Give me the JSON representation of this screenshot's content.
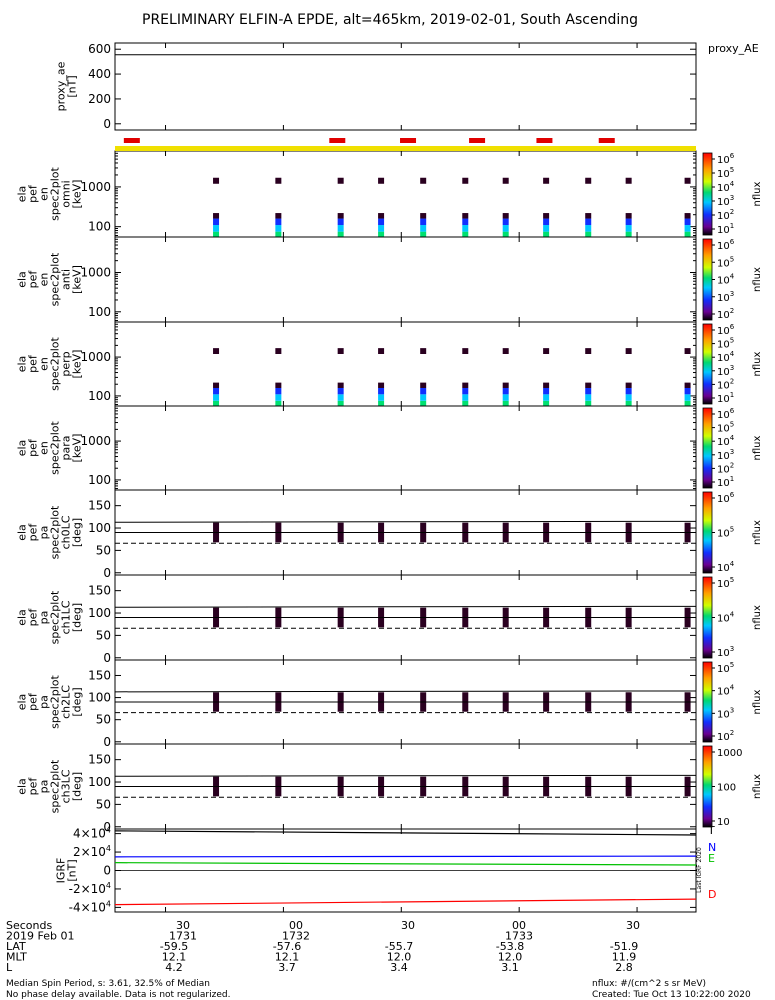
{
  "title": "PRELIMINARY ELFIN-A EPDE, alt=465km, 2019-02-01, South Ascending",
  "colors": {
    "frame": "#000000",
    "yellow_bar": "#f0e000",
    "red_bar": "#e00000",
    "igrf_T": "#000000",
    "igrf_N": "#0000ff",
    "igrf_E": "#00c000",
    "igrf_D": "#ff0000"
  },
  "chart_data": [
    {
      "type": "line",
      "panel": "proxy_ae",
      "ylabel": [
        "proxy_ae",
        "[nT]"
      ],
      "yticks": [
        "600",
        "400",
        "200",
        "0"
      ],
      "ylim": [
        -50,
        650
      ],
      "series": [
        {
          "name": "proxy_AE",
          "x_sec": [
            1713,
            1747.5
          ],
          "y": [
            555,
            555
          ]
        }
      ]
    },
    {
      "type": "heatmap",
      "panel": "en_spec_omni",
      "ylabel": [
        "ela",
        "pef",
        "en",
        "spec2plot",
        "omni",
        "[keV]"
      ],
      "yscale": "log",
      "yticks": [
        "1000",
        "100"
      ],
      "ylim": [
        55,
        8000
      ],
      "colorbar": {
        "label": "nflux",
        "ticks": [
          "10",
          "10",
          "10",
          "10",
          "10",
          "10"
        ],
        "exps": [
          "6",
          "5",
          "4",
          "3",
          "2",
          "1"
        ]
      }
    },
    {
      "type": "heatmap",
      "panel": "en_spec_anti",
      "ylabel": [
        "ela",
        "pef",
        "en",
        "spec2plot",
        "anti",
        "[keV]"
      ],
      "yscale": "log",
      "yticks": [
        "1000",
        "100"
      ],
      "ylim": [
        55,
        8000
      ],
      "colorbar": {
        "label": "nflux",
        "ticks": [
          "10",
          "10",
          "10",
          "10",
          "10"
        ],
        "exps": [
          "6",
          "5",
          "4",
          "3",
          "2"
        ]
      }
    },
    {
      "type": "heatmap",
      "panel": "en_spec_perp",
      "ylabel": [
        "ela",
        "pef",
        "en",
        "spec2plot",
        "perp",
        "[keV]"
      ],
      "yscale": "log",
      "yticks": [
        "1000",
        "100"
      ],
      "ylim": [
        55,
        8000
      ],
      "colorbar": {
        "label": "nflux",
        "ticks": [
          "10",
          "10",
          "10",
          "10",
          "10",
          "10"
        ],
        "exps": [
          "6",
          "5",
          "4",
          "3",
          "2",
          "1"
        ]
      }
    },
    {
      "type": "heatmap",
      "panel": "en_spec_para",
      "ylabel": [
        "ela",
        "pef",
        "en",
        "spec2plot",
        "para",
        "[keV]"
      ],
      "yscale": "log",
      "yticks": [
        "1000",
        "100"
      ],
      "ylim": [
        55,
        8000
      ],
      "colorbar": {
        "label": "nflux",
        "ticks": [
          "10",
          "10",
          "10",
          "10",
          "10",
          "10"
        ],
        "exps": [
          "6",
          "5",
          "4",
          "3",
          "2",
          "1"
        ]
      }
    },
    {
      "type": "heatmap",
      "panel": "pa_spec_ch0",
      "ylabel": [
        "ela",
        "pef",
        "pa",
        "spec2plot",
        "ch0LC",
        "[deg]"
      ],
      "yticks": [
        "150",
        "100",
        "50",
        "0"
      ],
      "ylim": [
        -5,
        185
      ],
      "colorbar": {
        "label": "nflux",
        "ticks": [
          "10",
          "10",
          "10"
        ],
        "exps": [
          "6",
          "5",
          "4"
        ]
      }
    },
    {
      "type": "heatmap",
      "panel": "pa_spec_ch1",
      "ylabel": [
        "ela",
        "pef",
        "pa",
        "spec2plot",
        "ch1LC",
        "[deg]"
      ],
      "yticks": [
        "150",
        "100",
        "50",
        "0"
      ],
      "ylim": [
        -5,
        185
      ],
      "colorbar": {
        "label": "nflux",
        "ticks": [
          "10",
          "10",
          "10"
        ],
        "exps": [
          "5",
          "4",
          "3"
        ]
      }
    },
    {
      "type": "heatmap",
      "panel": "pa_spec_ch2",
      "ylabel": [
        "ela",
        "pef",
        "pa",
        "spec2plot",
        "ch2LC",
        "[deg]"
      ],
      "yticks": [
        "150",
        "100",
        "50",
        "0"
      ],
      "ylim": [
        -5,
        185
      ],
      "colorbar": {
        "label": "nflux",
        "ticks": [
          "10",
          "10",
          "10",
          "10"
        ],
        "exps": [
          "5",
          "4",
          "3",
          "2"
        ]
      }
    },
    {
      "type": "heatmap",
      "panel": "pa_spec_ch3",
      "ylabel": [
        "ela",
        "pef",
        "pa",
        "spec2plot",
        "ch3LC",
        "[deg]"
      ],
      "yticks": [
        "150",
        "100",
        "50",
        "0"
      ],
      "ylim": [
        -5,
        185
      ],
      "colorbar": {
        "label": "nflux",
        "ticks": [
          "1000",
          "100",
          "10"
        ],
        "exps": [
          "",
          "",
          ""
        ]
      }
    },
    {
      "type": "line",
      "panel": "igrf",
      "ylabel": [
        "IGRF",
        "[nT]"
      ],
      "yticks": [
        "4×10",
        "2×10",
        "0",
        "-2×10",
        "-4×10"
      ],
      "ytick_exps": [
        "4",
        "4",
        "",
        "4",
        "4"
      ],
      "ylim": [
        -45000,
        45000
      ],
      "series": [
        {
          "name": "T",
          "x_sec": [
            1713,
            1747.5
          ],
          "y": [
            43000,
            38500
          ]
        },
        {
          "name": "N",
          "x_sec": [
            1713,
            1747.5
          ],
          "y": [
            14800,
            15600
          ]
        },
        {
          "name": "E",
          "x_sec": [
            1713,
            1747.5
          ],
          "y": [
            8500,
            6000
          ]
        },
        {
          "name": "D",
          "x_sec": [
            1713,
            1747.5
          ],
          "y": [
            -37000,
            -31000
          ]
        }
      ]
    }
  ],
  "legend_proxy": "proxy_AE",
  "igrf_legend": [
    "T",
    "N",
    "E",
    "D"
  ],
  "igrf_vertical_note": "Last IGRF 2020",
  "xaxis": {
    "tick_labels": [
      "30",
      "00",
      "30",
      "00",
      "30"
    ],
    "rows": [
      {
        "label": "Seconds",
        "values": [
          "1731",
          "1732",
          "",
          "1733",
          ""
        ]
      },
      {
        "label": "2019 Feb 01",
        "values": [
          "",
          "",
          "",
          "",
          ""
        ]
      },
      {
        "label": "LAT",
        "values": [
          "-59.5",
          "-57.6",
          "-55.7",
          "-53.8",
          "-51.9"
        ]
      },
      {
        "label": "MLT",
        "values": [
          "12.1",
          "12.1",
          "12.0",
          "12.0",
          "11.9"
        ]
      },
      {
        "label": "L",
        "values": [
          "4.2",
          "3.7",
          "3.4",
          "3.1",
          "2.8"
        ]
      }
    ]
  },
  "footer": {
    "left1": "Median Spin Period, s: 3.61, 32.5% of Median",
    "left2": "No phase delay available. Data is not regularized.",
    "right1": "nflux: #/(cm^2 s sr MeV)",
    "right2": "Created: Tue Oct 13 10:22:00 2020"
  }
}
